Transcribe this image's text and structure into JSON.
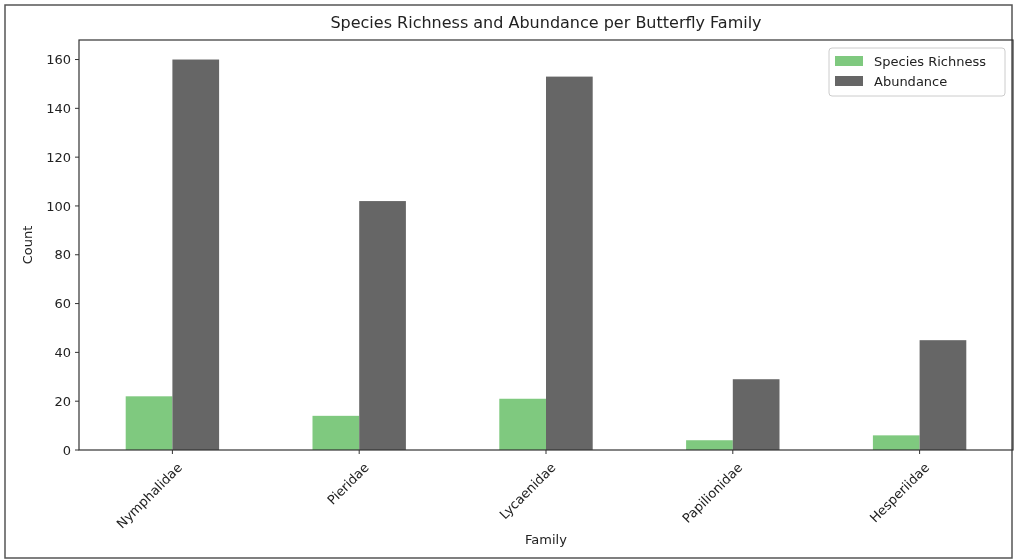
{
  "chart_data": {
    "type": "bar",
    "title": "Species Richness and Abundance per Butterfly Family",
    "xlabel": "Family",
    "ylabel": "Count",
    "categories": [
      "Nymphalidae",
      "Pieridae",
      "Lycaenidae",
      "Papilionidae",
      "Hesperiidae"
    ],
    "series": [
      {
        "name": "Species Richness",
        "color": "#7fc97f",
        "values": [
          22,
          14,
          21,
          4,
          6
        ]
      },
      {
        "name": "Abundance",
        "color": "#666666",
        "values": [
          160,
          102,
          153,
          29,
          45
        ]
      }
    ],
    "ylim": [
      0,
      168
    ],
    "yticks": [
      0,
      20,
      40,
      60,
      80,
      100,
      120,
      140,
      160
    ],
    "legend": "top right"
  }
}
